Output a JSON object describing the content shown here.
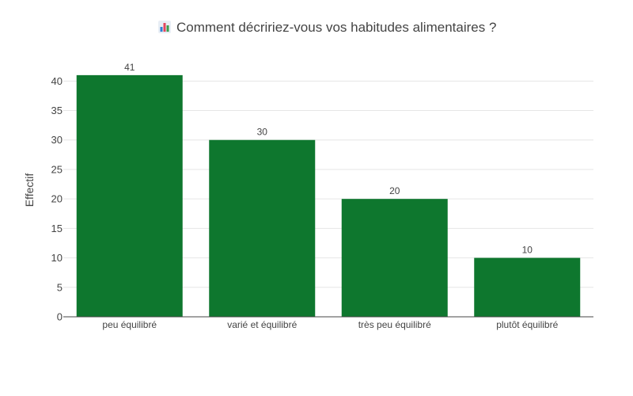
{
  "chart_data": {
    "type": "bar",
    "title": "Comment décririez-vous vos habitudes alimentaires ?",
    "title_icon": "bar-chart-icon",
    "xlabel": "",
    "ylabel": "Effectif",
    "categories": [
      "peu équilibré",
      "varié et équilibré",
      "très peu équilibré",
      "plutôt équilibré"
    ],
    "values": [
      41,
      30,
      20,
      10
    ],
    "data_labels": [
      "41",
      "30",
      "20",
      "10"
    ],
    "ylim": [
      0,
      43
    ],
    "yticks": [
      0,
      5,
      10,
      15,
      20,
      25,
      30,
      35,
      40
    ],
    "ytick_labels": [
      "0",
      "5",
      "10",
      "15",
      "20",
      "25",
      "30",
      "35",
      "40"
    ],
    "bar_color": "#0e772e",
    "grid": true,
    "legend": false
  }
}
